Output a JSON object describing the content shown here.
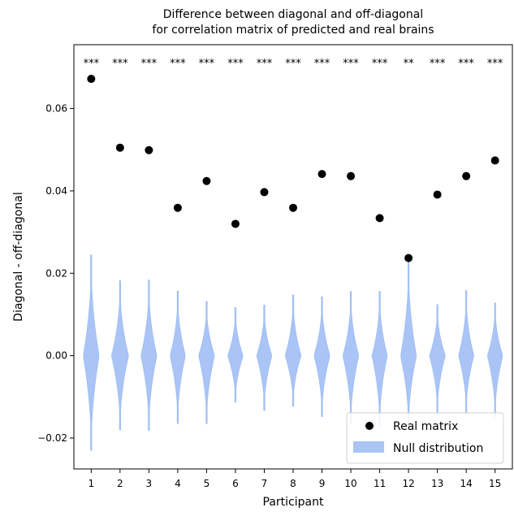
{
  "chart_data": {
    "type": "scatter",
    "title_line1": "Difference between diagonal and off-diagonal",
    "title_line2": "for correlation matrix of predicted and real brains",
    "xlabel": "Participant",
    "ylabel": "Diagonal - off-diagonal",
    "x_ticks": [
      "1",
      "2",
      "3",
      "4",
      "5",
      "6",
      "7",
      "8",
      "9",
      "10",
      "11",
      "12",
      "13",
      "14",
      "15"
    ],
    "y_ticks": [
      {
        "value": -0.02,
        "label": "−0.02"
      },
      {
        "value": 0.0,
        "label": "0.00"
      },
      {
        "value": 0.02,
        "label": "0.02"
      },
      {
        "value": 0.04,
        "label": "0.04"
      },
      {
        "value": 0.06,
        "label": "0.06"
      }
    ],
    "xlim": [
      0.4,
      15.6
    ],
    "ylim": [
      -0.0275,
      0.0755
    ],
    "grid": false,
    "legend_position": "lower-right",
    "colors": {
      "points": "#000000",
      "violin": "#6495ed"
    },
    "series": [
      {
        "name": "Real matrix",
        "x": [
          1,
          2,
          3,
          4,
          5,
          6,
          7,
          8,
          9,
          10,
          11,
          12,
          13,
          14,
          15
        ],
        "y": [
          0.0672,
          0.0505,
          0.0499,
          0.0359,
          0.0424,
          0.032,
          0.0397,
          0.0359,
          0.0441,
          0.0436,
          0.0334,
          0.0237,
          0.0391,
          0.0436,
          0.0474
        ]
      },
      {
        "name": "Null distribution",
        "violins": [
          {
            "min": -0.023,
            "max": 0.0245,
            "width": 0.28
          },
          {
            "min": -0.018,
            "max": 0.0182,
            "width": 0.3
          },
          {
            "min": -0.0182,
            "max": 0.0184,
            "width": 0.28
          },
          {
            "min": -0.0165,
            "max": 0.0157,
            "width": 0.27
          },
          {
            "min": -0.0165,
            "max": 0.0132,
            "width": 0.28
          },
          {
            "min": -0.0113,
            "max": 0.0117,
            "width": 0.27
          },
          {
            "min": -0.0133,
            "max": 0.0123,
            "width": 0.27
          },
          {
            "min": -0.0123,
            "max": 0.0148,
            "width": 0.28
          },
          {
            "min": -0.0148,
            "max": 0.0143,
            "width": 0.28
          },
          {
            "min": -0.0168,
            "max": 0.0156,
            "width": 0.28
          },
          {
            "min": -0.0172,
            "max": 0.0156,
            "width": 0.27
          },
          {
            "min": -0.0178,
            "max": 0.0232,
            "width": 0.28
          },
          {
            "min": -0.014,
            "max": 0.0124,
            "width": 0.28
          },
          {
            "min": -0.014,
            "max": 0.0158,
            "width": 0.27
          },
          {
            "min": -0.015,
            "max": 0.0128,
            "width": 0.27
          }
        ]
      }
    ],
    "significance": [
      "***",
      "***",
      "***",
      "***",
      "***",
      "***",
      "***",
      "***",
      "***",
      "***",
      "***",
      "**",
      "***",
      "***",
      "***"
    ],
    "legend": [
      {
        "label": "Real matrix",
        "marker": "dot"
      },
      {
        "label": "Null distribution",
        "marker": "patch"
      }
    ]
  }
}
